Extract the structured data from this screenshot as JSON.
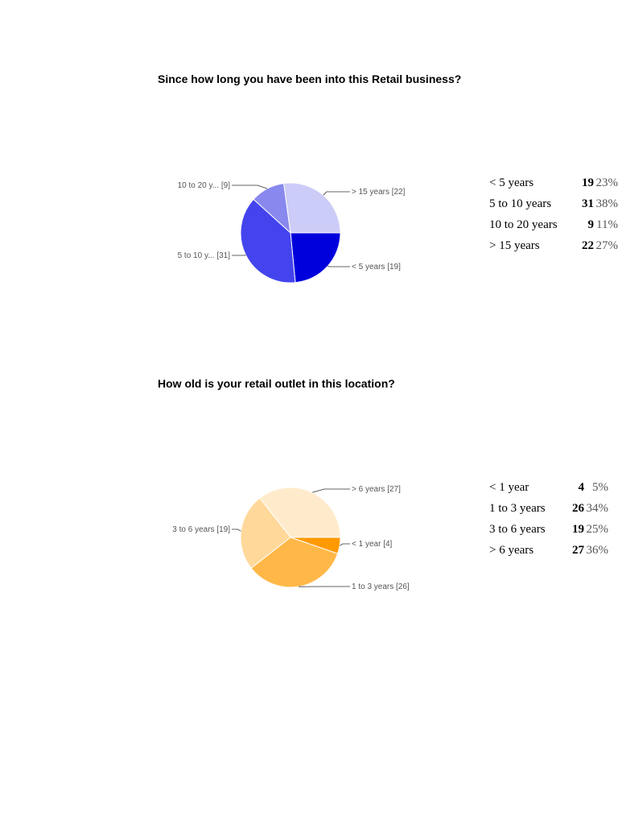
{
  "chart_data": [
    {
      "type": "pie",
      "title": "Since how long you have been into this Retail business?",
      "slices": [
        {
          "label": "< 5 years",
          "value": 19,
          "percent": "23%",
          "chart_label": "< 5 years [19]",
          "color": "#0000dd"
        },
        {
          "label": "5 to 10 years",
          "value": 31,
          "percent": "38%",
          "chart_label": "5 to 10 y... [31]",
          "color": "#4444ee"
        },
        {
          "label": "10 to 20 years",
          "value": 9,
          "percent": "11%",
          "chart_label": "10 to 20 y... [9]",
          "color": "#8888ee"
        },
        {
          "label": "> 15 years",
          "value": 22,
          "percent": "27%",
          "chart_label": "> 15 years [22]",
          "color": "#ccccf8"
        }
      ]
    },
    {
      "type": "pie",
      "title": "How old is your retail outlet in this location?",
      "slices": [
        {
          "label": "< 1 year",
          "value": 4,
          "percent": "5%",
          "chart_label": "< 1 year [4]",
          "color": "#ff9900"
        },
        {
          "label": "1 to 3 years",
          "value": 26,
          "percent": "34%",
          "chart_label": "1 to 3 years [26]",
          "color": "#ffb848"
        },
        {
          "label": "3 to 6 years",
          "value": 19,
          "percent": "25%",
          "chart_label": "3 to 6 years [19]",
          "color": "#ffd89a"
        },
        {
          "label": "> 6 years",
          "value": 27,
          "percent": "36%",
          "chart_label": "> 6 years [27]",
          "color": "#ffebcc"
        }
      ]
    }
  ]
}
